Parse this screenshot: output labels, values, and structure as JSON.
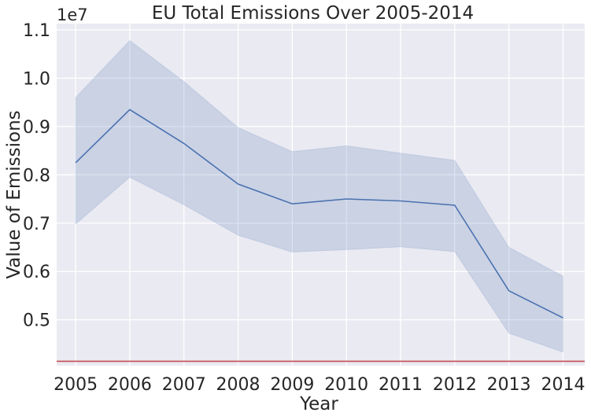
{
  "chart_data": {
    "type": "line",
    "title": "EU Total Emissions Over 2005-2014",
    "xlabel": "Year",
    "ylabel": "Value of Emissions",
    "y_offset_label": "1e7",
    "x": [
      2005,
      2006,
      2007,
      2008,
      2009,
      2010,
      2011,
      2012,
      2013,
      2014
    ],
    "x_tick_labels": [
      "2005",
      "2006",
      "2007",
      "2008",
      "2009",
      "2010",
      "2011",
      "2012",
      "2013",
      "2014"
    ],
    "y_tick_values": [
      0.5,
      0.6,
      0.7,
      0.8,
      0.9,
      1.0,
      1.1
    ],
    "y_tick_labels": [
      "0.5",
      "0.6",
      "0.7",
      "0.8",
      "0.9",
      "1.0",
      "1.1"
    ],
    "ylim": [
      0.405,
      1.113
    ],
    "xlim": [
      2004.65,
      2014.4
    ],
    "series": [
      {
        "values": [
          0.825,
          0.935,
          0.865,
          0.781,
          0.74,
          0.75,
          0.746,
          0.737,
          0.56,
          0.504
        ],
        "ci_upper": [
          0.96,
          1.078,
          0.993,
          0.898,
          0.848,
          0.86,
          0.845,
          0.83,
          0.65,
          0.59
        ],
        "ci_lower": [
          0.698,
          0.795,
          0.738,
          0.675,
          0.64,
          0.645,
          0.651,
          0.641,
          0.472,
          0.433
        ],
        "color": "#4c72b0"
      }
    ],
    "reference_line": {
      "y": 0.414,
      "color": "#c44e52"
    },
    "grid": true,
    "background": "#eaeaf2",
    "grid_color": "#ffffff"
  }
}
